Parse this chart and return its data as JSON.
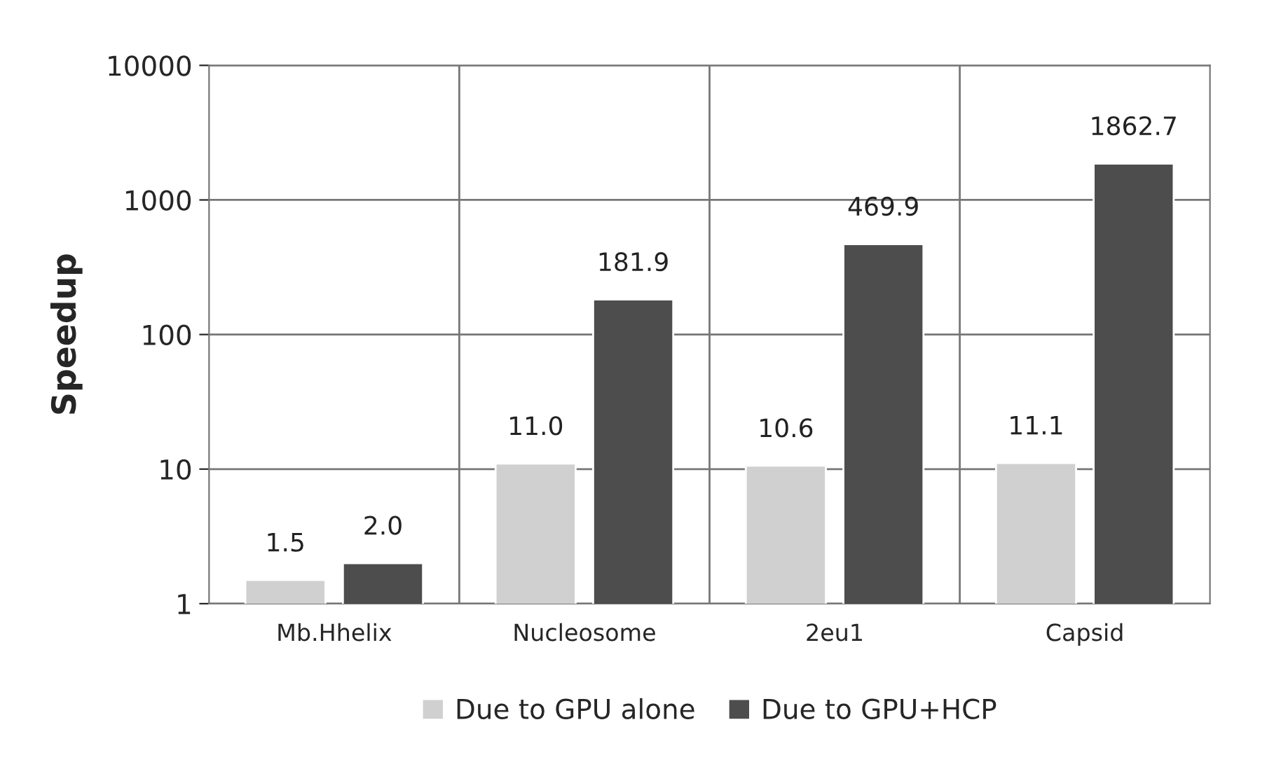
{
  "chart_data": {
    "type": "bar",
    "ylabel": "Speedup",
    "categories": [
      "Mb.Hhelix",
      "Nucleosome",
      "2eu1",
      "Capsid"
    ],
    "series": [
      {
        "name": "Due to GPU alone",
        "color": "#d0d0d0",
        "values": [
          1.5,
          11.0,
          10.6,
          11.1
        ],
        "value_labels": [
          "1.5",
          "11.0",
          "10.6",
          "11.1"
        ]
      },
      {
        "name": "Due to GPU+HCP",
        "color": "#4d4d4d",
        "values": [
          2.0,
          181.9,
          469.9,
          1862.7
        ],
        "value_labels": [
          "2.0",
          "181.9",
          "469.9",
          "1862.7"
        ]
      }
    ],
    "log": true,
    "ylim": [
      1,
      10000
    ],
    "yticks": [
      1,
      10,
      100,
      1000,
      10000
    ],
    "grid": true,
    "legend": "bottom"
  }
}
